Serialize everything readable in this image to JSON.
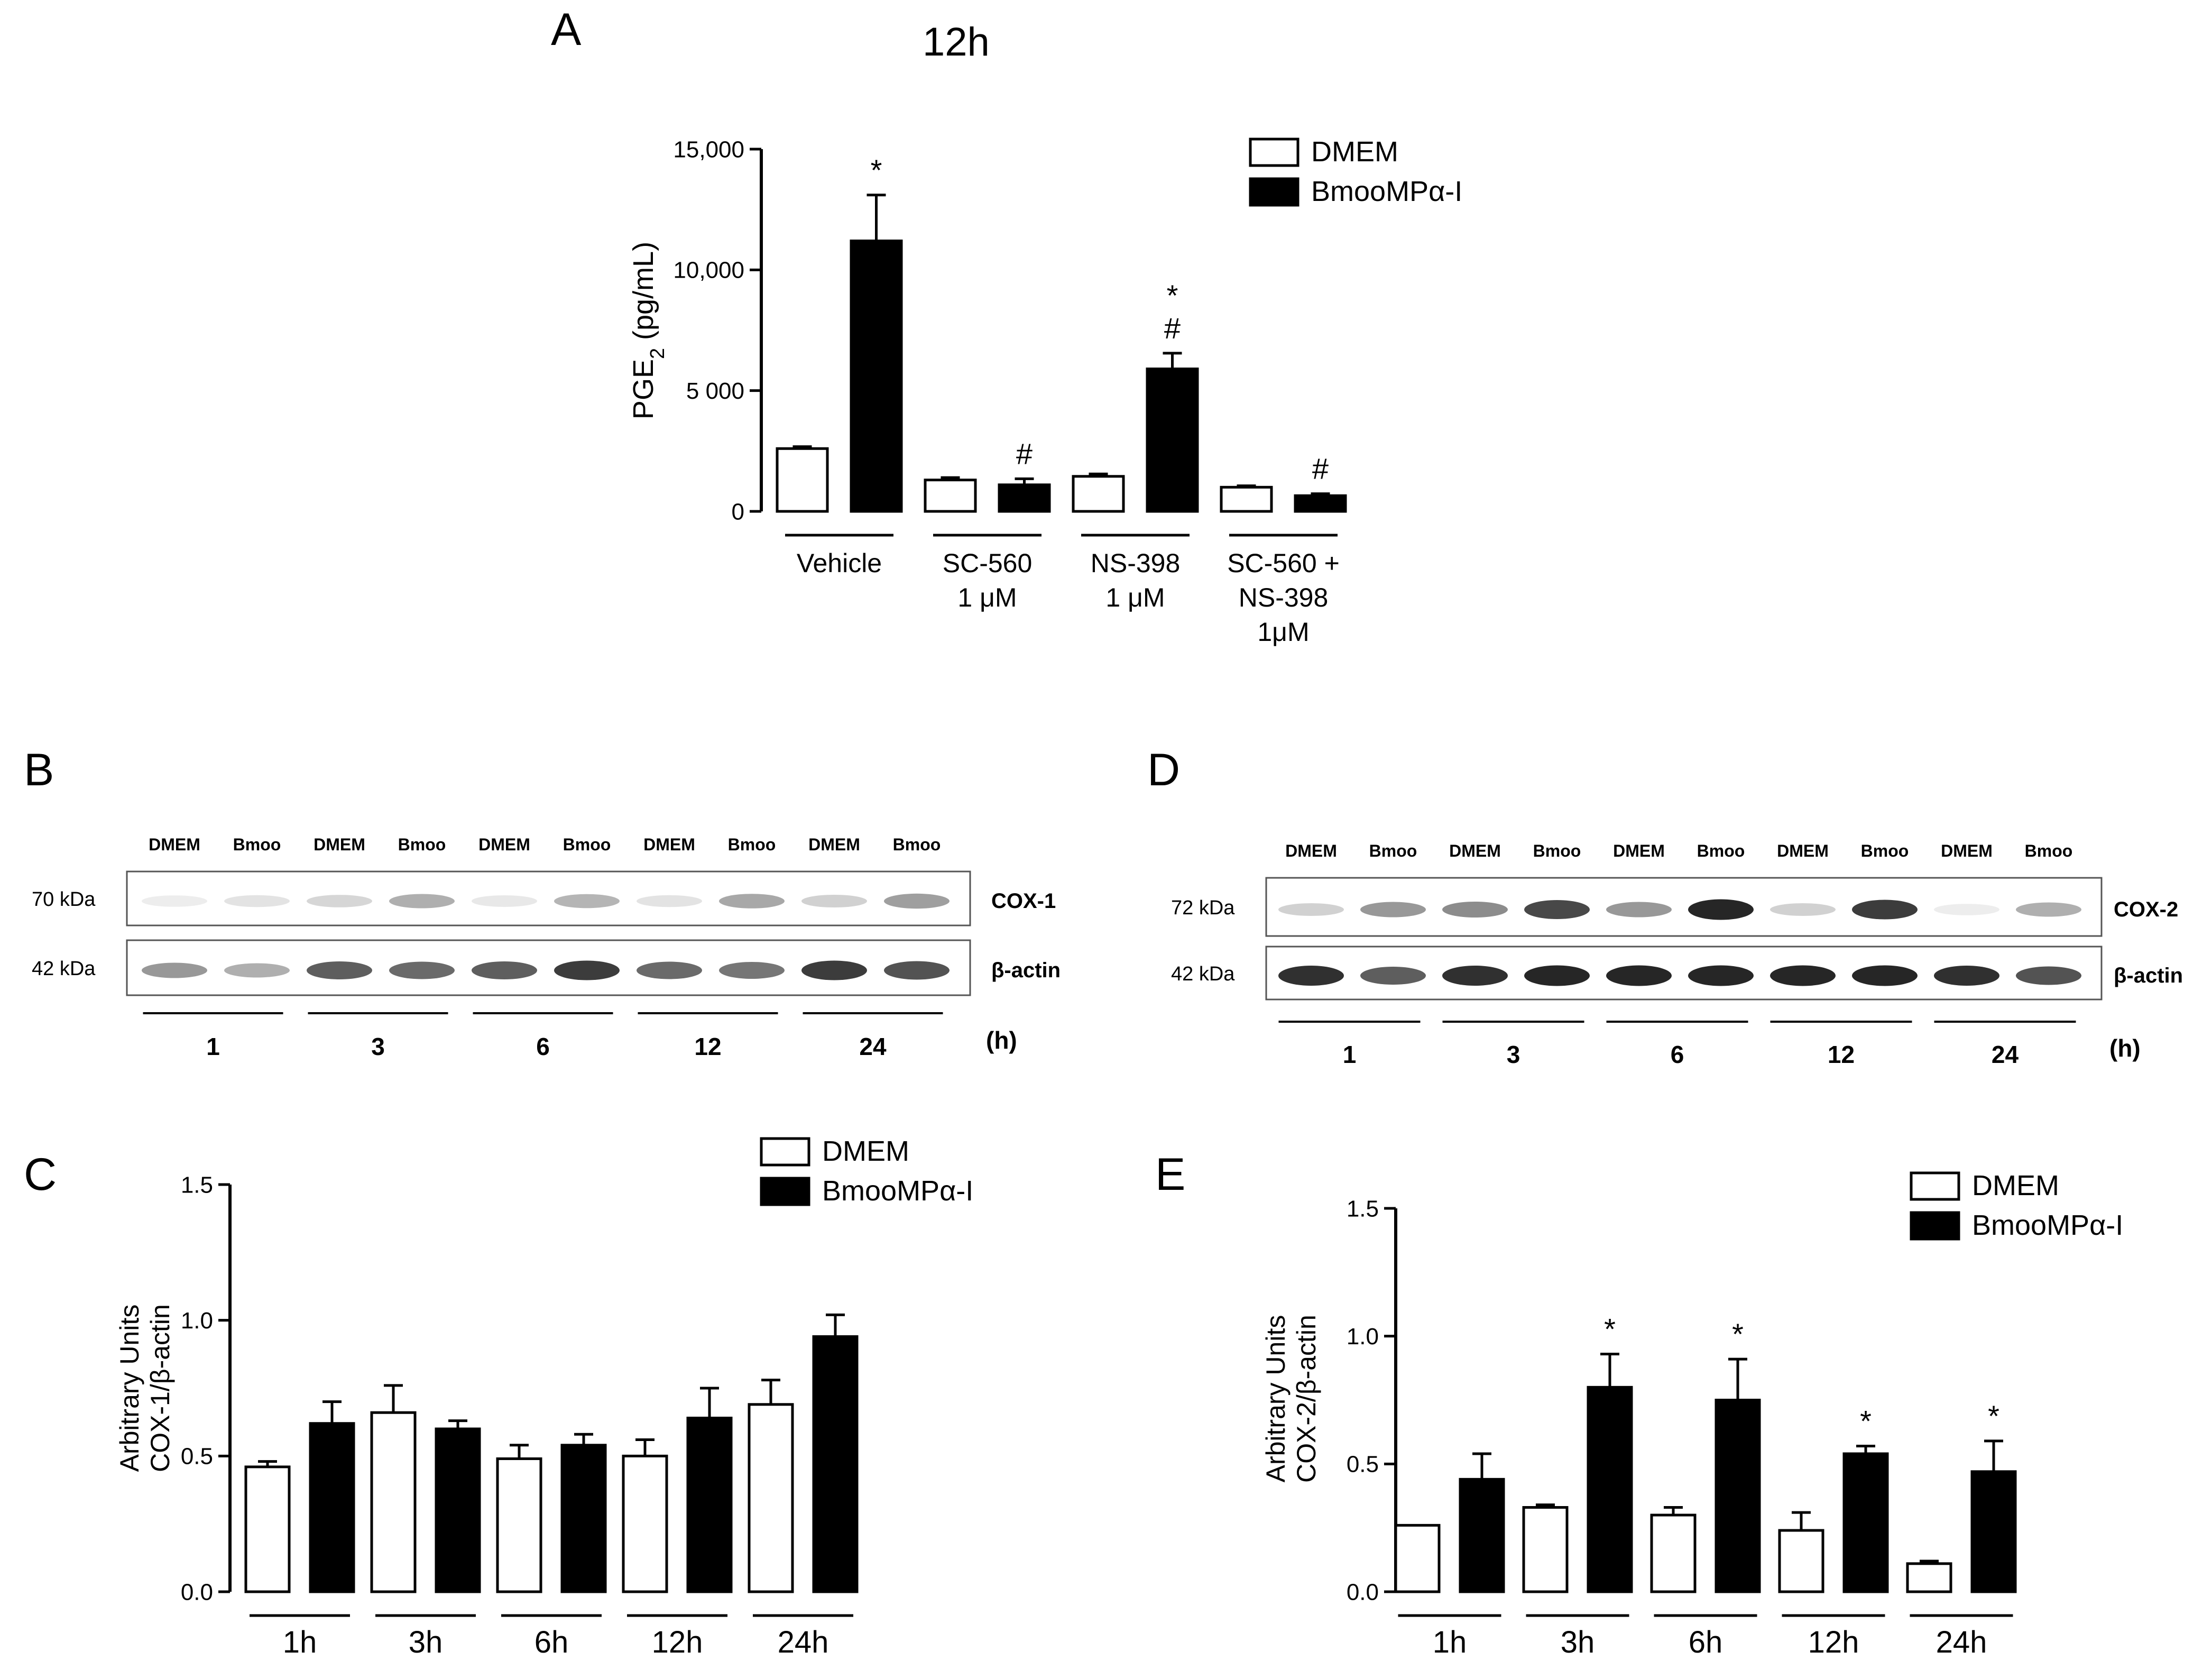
{
  "colors": {
    "dmem_fill": "#ffffff",
    "bmoo_fill": "#000000",
    "axis": "#000000",
    "band": "#1a1a1a",
    "panel_bg": "#ffffff",
    "blot_border": "#555555"
  },
  "legend": {
    "dmem": "DMEM",
    "bmoo": "BmooMPα-I"
  },
  "panel_labels": {
    "a": "A",
    "b": "B",
    "c": "C",
    "d": "D",
    "e": "E"
  },
  "chart_data": [
    {
      "id": "A",
      "type": "bar",
      "title": "12h",
      "ylabel_main": "PGE",
      "ylabel_sub": "2",
      "ylabel_tail": " (pg/mL)",
      "ylim": [
        0,
        15000
      ],
      "yticks": [
        0,
        5000,
        10000,
        15000
      ],
      "ytick_labels": [
        "0",
        "5 000",
        "10,000",
        "15,000"
      ],
      "categories": [
        [
          "Vehicle"
        ],
        [
          "SC-560",
          "1 μM"
        ],
        [
          "NS-398",
          "1 μM"
        ],
        [
          "SC-560 +",
          "NS-398",
          "1μM"
        ]
      ],
      "series": [
        {
          "name": "DMEM",
          "values": [
            2600,
            1300,
            1450,
            1000
          ],
          "errors": [
            80,
            100,
            100,
            60
          ],
          "marks": [
            "",
            "",
            "",
            ""
          ]
        },
        {
          "name": "BmooMPα-I",
          "values": [
            11200,
            1100,
            5900,
            650
          ],
          "errors": [
            1900,
            250,
            650,
            80
          ],
          "marks": [
            [
              "*"
            ],
            [
              "#"
            ],
            [
              "*",
              "#"
            ],
            [
              "#"
            ]
          ]
        }
      ]
    },
    {
      "id": "C",
      "type": "bar",
      "title": "",
      "ylabel_lines": [
        "Arbitrary Units",
        "COX-1/β-actin"
      ],
      "ylim": [
        0,
        1.5
      ],
      "yticks": [
        0,
        0.5,
        1.0,
        1.5
      ],
      "ytick_labels": [
        "0.0",
        "0.5",
        "1.0",
        "1.5"
      ],
      "categories": [
        [
          "1h"
        ],
        [
          "3h"
        ],
        [
          "6h"
        ],
        [
          "12h"
        ],
        [
          "24h"
        ]
      ],
      "series": [
        {
          "name": "DMEM",
          "values": [
            0.46,
            0.66,
            0.49,
            0.5,
            0.69
          ],
          "errors": [
            0.02,
            0.1,
            0.05,
            0.06,
            0.09
          ],
          "marks": [
            "",
            "",
            "",
            "",
            ""
          ]
        },
        {
          "name": "BmooMPα-I",
          "values": [
            0.62,
            0.6,
            0.54,
            0.64,
            0.94
          ],
          "errors": [
            0.08,
            0.03,
            0.04,
            0.11,
            0.08
          ],
          "marks": [
            "",
            "",
            "",
            "",
            ""
          ]
        }
      ]
    },
    {
      "id": "E",
      "type": "bar",
      "title": "",
      "ylabel_lines": [
        "Arbitrary Units",
        "COX-2/β-actin"
      ],
      "ylim": [
        0,
        1.5
      ],
      "yticks": [
        0,
        0.5,
        1.0,
        1.5
      ],
      "ytick_labels": [
        "0.0",
        "0.5",
        "1.0",
        "1.5"
      ],
      "categories": [
        [
          "1h"
        ],
        [
          "3h"
        ],
        [
          "6h"
        ],
        [
          "12h"
        ],
        [
          "24h"
        ]
      ],
      "series": [
        {
          "name": "DMEM",
          "values": [
            0.26,
            0.33,
            0.3,
            0.24,
            0.11
          ],
          "errors": [
            0.0,
            0.01,
            0.03,
            0.07,
            0.01
          ],
          "marks": [
            "",
            "",
            "",
            "",
            ""
          ]
        },
        {
          "name": "BmooMPα-I",
          "values": [
            0.44,
            0.8,
            0.75,
            0.54,
            0.47
          ],
          "errors": [
            0.1,
            0.13,
            0.16,
            0.03,
            0.12
          ],
          "marks": [
            [],
            [
              "*"
            ],
            [
              "*"
            ],
            [
              "*"
            ],
            [
              "*"
            ]
          ]
        }
      ]
    }
  ],
  "blots": [
    {
      "id": "B",
      "lane_labels": [
        "DMEM",
        "Bmoo",
        "DMEM",
        "Bmoo",
        "DMEM",
        "Bmoo",
        "DMEM",
        "Bmoo",
        "DMEM",
        "Bmoo"
      ],
      "rows": [
        {
          "kda": "70 kDa",
          "protein": "COX-1",
          "band_intensity": [
            0.08,
            0.12,
            0.18,
            0.35,
            0.1,
            0.32,
            0.12,
            0.38,
            0.2,
            0.42
          ]
        },
        {
          "kda": "42 kDa",
          "protein": "β-actin",
          "band_intensity": [
            0.45,
            0.35,
            0.7,
            0.65,
            0.7,
            0.85,
            0.65,
            0.6,
            0.85,
            0.75
          ]
        }
      ],
      "time_labels": [
        "1",
        "3",
        "6",
        "12",
        "24"
      ],
      "unit": "(h)"
    },
    {
      "id": "D",
      "lane_labels": [
        "DMEM",
        "Bmoo",
        "DMEM",
        "Bmoo",
        "DMEM",
        "Bmoo",
        "DMEM",
        "Bmoo",
        "DMEM",
        "Bmoo"
      ],
      "rows": [
        {
          "kda": "72 kDa",
          "protein": "COX-2",
          "band_intensity": [
            0.2,
            0.45,
            0.5,
            0.8,
            0.45,
            0.95,
            0.2,
            0.85,
            0.08,
            0.35
          ]
        },
        {
          "kda": "42 kDa",
          "protein": "β-actin",
          "band_intensity": [
            0.9,
            0.7,
            0.9,
            0.95,
            0.95,
            0.95,
            0.95,
            0.95,
            0.9,
            0.75
          ]
        }
      ],
      "time_labels": [
        "1",
        "3",
        "6",
        "12",
        "24"
      ],
      "unit": "(h)"
    }
  ]
}
